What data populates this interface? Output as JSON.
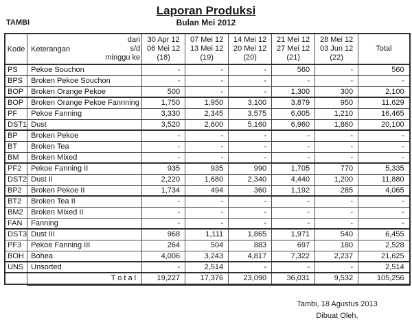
{
  "header": {
    "title": "Laporan Produksi",
    "subtitle": "Bulan Mei 2012",
    "company": "TAMBI"
  },
  "table": {
    "corner": {
      "kode_label": "Kode",
      "keterangan_label": "Keterangan",
      "range_lines": [
        "dari",
        "s/d",
        "minggu ke"
      ]
    },
    "week_columns": [
      {
        "from": "30 Apr 12",
        "to": "06 Mei 12",
        "week": "(18)"
      },
      {
        "from": "07 Mei 12",
        "to": "13 Mei 12",
        "week": "(19)"
      },
      {
        "from": "14 Mei 12",
        "to": "20 Mei 12",
        "week": "(20)"
      },
      {
        "from": "21 Mei 12",
        "to": "27 Mei 12",
        "week": "(21)"
      },
      {
        "from": "28 Mei 12",
        "to": "03 Jun 12",
        "week": "(22)"
      }
    ],
    "total_header": "Total",
    "rows": [
      {
        "kode": "PS",
        "keterangan": "Pekoe Souchon",
        "values": [
          "-",
          "-",
          "-",
          "560",
          "-"
        ],
        "total": "560",
        "group_end": false
      },
      {
        "kode": "BPS",
        "keterangan": "Broken Pekoe Souchon",
        "values": [
          "-",
          "-",
          "-",
          "-",
          "-"
        ],
        "total": "-",
        "group_end": false
      },
      {
        "kode": "BOP",
        "keterangan": "Broken Orange Pekoe",
        "values": [
          "500",
          "-",
          "-",
          "1,300",
          "300"
        ],
        "total": "2,100",
        "group_end": true
      },
      {
        "kode": "BOP",
        "keterangan": "Broken Orange Pekoe Fannning",
        "values": [
          "1,750",
          "1,950",
          "3,100",
          "3,879",
          "950"
        ],
        "total": "11,629",
        "group_end": false
      },
      {
        "kode": "PF",
        "keterangan": "Pekoe Fanning",
        "values": [
          "3,330",
          "2,345",
          "3,575",
          "6,005",
          "1,210"
        ],
        "total": "16,465",
        "group_end": false
      },
      {
        "kode": "DST1",
        "keterangan": "Dust",
        "values": [
          "3,520",
          "2,600",
          "5,160",
          "6,960",
          "1,860"
        ],
        "total": "20,100",
        "group_end": true
      },
      {
        "kode": "BP",
        "keterangan": "Broken Pekoe",
        "values": [
          "-",
          "-",
          "-",
          "-",
          "-"
        ],
        "total": "-",
        "group_end": false
      },
      {
        "kode": "BT",
        "keterangan": "Broken Tea",
        "values": [
          "-",
          "-",
          "-",
          "-",
          "-"
        ],
        "total": "-",
        "group_end": false
      },
      {
        "kode": "BM",
        "keterangan": "Broken Mixed",
        "values": [
          "-",
          "-",
          "-",
          "-",
          "-"
        ],
        "total": "-",
        "group_end": true
      },
      {
        "kode": "PF2",
        "keterangan": "Pekoe Fanning II",
        "values": [
          "935",
          "935",
          "990",
          "1,705",
          "770"
        ],
        "total": "5,335",
        "group_end": false
      },
      {
        "kode": "DST2",
        "keterangan": "Dust II",
        "values": [
          "2,220",
          "1,680",
          "2,340",
          "4,440",
          "1,200"
        ],
        "total": "11,880",
        "group_end": false
      },
      {
        "kode": "BP2",
        "keterangan": "Broken Pekoe II",
        "values": [
          "1,734",
          "494",
          "360",
          "1,192",
          "285"
        ],
        "total": "4,065",
        "group_end": true
      },
      {
        "kode": "BT2",
        "keterangan": "Broken Tea II",
        "values": [
          "-",
          "-",
          "-",
          "-",
          "-"
        ],
        "total": "-",
        "group_end": false
      },
      {
        "kode": "BM2",
        "keterangan": "Broken Mixed II",
        "values": [
          "-",
          "-",
          "-",
          "-",
          "-"
        ],
        "total": "-",
        "group_end": false
      },
      {
        "kode": "FAN",
        "keterangan": "Fanning",
        "values": [
          "-",
          "-",
          "-",
          "-",
          "-"
        ],
        "total": "-",
        "group_end": true
      },
      {
        "kode": "DST3",
        "keterangan": "Dust III",
        "values": [
          "968",
          "1,111",
          "1,865",
          "1,971",
          "540"
        ],
        "total": "6,455",
        "group_end": false
      },
      {
        "kode": "PF3",
        "keterangan": "Pekoe Fanning III",
        "values": [
          "264",
          "504",
          "883",
          "697",
          "180"
        ],
        "total": "2,528",
        "group_end": false
      },
      {
        "kode": "BOH",
        "keterangan": "Bohea",
        "values": [
          "4,006",
          "3,243",
          "4,817",
          "7,322",
          "2,237"
        ],
        "total": "21,625",
        "group_end": true
      },
      {
        "kode": "UNS",
        "keterangan": "Unsorted",
        "values": [
          "-",
          "2,514",
          "-",
          "-",
          "-"
        ],
        "total": "2,514",
        "group_end": true
      }
    ],
    "total_row": {
      "label": "T o t a l",
      "values": [
        "19,227",
        "17,376",
        "23,090",
        "36,031",
        "9,532"
      ],
      "total": "105,256"
    }
  },
  "footer": {
    "place_date": "Tambi, 18 Agustus 2013",
    "made_by": "Dibuat Oleh,"
  }
}
